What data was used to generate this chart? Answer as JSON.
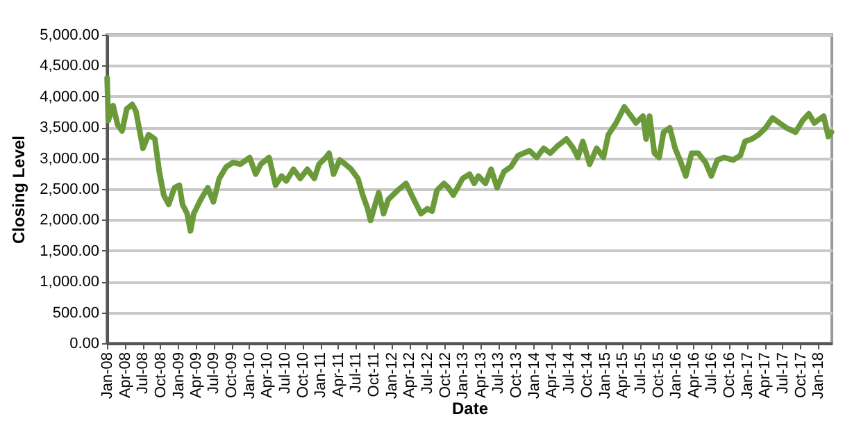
{
  "chart_data": {
    "type": "line",
    "xlabel": "Date",
    "ylabel": "Closing Level",
    "grid": "y",
    "xlim": [
      "2008-01-01",
      "2018-03-12"
    ],
    "xticks": [
      {
        "value": "2008-01-01",
        "label": "Jan-08"
      },
      {
        "value": "2008-04-01",
        "label": "Apr-08"
      },
      {
        "value": "2008-07-01",
        "label": "Jul-08"
      },
      {
        "value": "2008-10-01",
        "label": "Oct-08"
      },
      {
        "value": "2009-01-01",
        "label": "Jan-09"
      },
      {
        "value": "2009-04-01",
        "label": "Apr-09"
      },
      {
        "value": "2009-07-01",
        "label": "Jul-09"
      },
      {
        "value": "2009-10-01",
        "label": "Oct-09"
      },
      {
        "value": "2010-01-01",
        "label": "Jan-10"
      },
      {
        "value": "2010-04-01",
        "label": "Apr-10"
      },
      {
        "value": "2010-07-01",
        "label": "Jul-10"
      },
      {
        "value": "2010-10-01",
        "label": "Oct-10"
      },
      {
        "value": "2011-01-01",
        "label": "Jan-11"
      },
      {
        "value": "2011-04-01",
        "label": "Apr-11"
      },
      {
        "value": "2011-07-01",
        "label": "Jul-11"
      },
      {
        "value": "2011-10-01",
        "label": "Oct-11"
      },
      {
        "value": "2012-01-01",
        "label": "Jan-12"
      },
      {
        "value": "2012-04-01",
        "label": "Apr-12"
      },
      {
        "value": "2012-07-01",
        "label": "Jul-12"
      },
      {
        "value": "2012-10-01",
        "label": "Oct-12"
      },
      {
        "value": "2013-01-01",
        "label": "Jan-13"
      },
      {
        "value": "2013-04-01",
        "label": "Apr-13"
      },
      {
        "value": "2013-07-01",
        "label": "Jul-13"
      },
      {
        "value": "2013-10-01",
        "label": "Oct-13"
      },
      {
        "value": "2014-01-01",
        "label": "Jan-14"
      },
      {
        "value": "2014-04-01",
        "label": "Apr-14"
      },
      {
        "value": "2014-07-01",
        "label": "Jul-14"
      },
      {
        "value": "2014-10-01",
        "label": "Oct-14"
      },
      {
        "value": "2015-01-01",
        "label": "Jan-15"
      },
      {
        "value": "2015-04-01",
        "label": "Apr-15"
      },
      {
        "value": "2015-07-01",
        "label": "Jul-15"
      },
      {
        "value": "2015-10-01",
        "label": "Oct-15"
      },
      {
        "value": "2016-01-01",
        "label": "Jan-16"
      },
      {
        "value": "2016-04-01",
        "label": "Apr-16"
      },
      {
        "value": "2016-07-01",
        "label": "Jul-16"
      },
      {
        "value": "2016-10-01",
        "label": "Oct-16"
      },
      {
        "value": "2017-01-01",
        "label": "Jan-17"
      },
      {
        "value": "2017-04-01",
        "label": "Apr-17"
      },
      {
        "value": "2017-07-01",
        "label": "Jul-17"
      },
      {
        "value": "2017-10-01",
        "label": "Oct-17"
      },
      {
        "value": "2018-01-01",
        "label": "Jan-18"
      }
    ],
    "ylim": [
      0,
      5000
    ],
    "yticks": [
      {
        "value": 0,
        "label": "0.00"
      },
      {
        "value": 500,
        "label": "500.00"
      },
      {
        "value": 1000,
        "label": "1,000.00"
      },
      {
        "value": 1500,
        "label": "1,500.00"
      },
      {
        "value": 2000,
        "label": "2,000.00"
      },
      {
        "value": 2500,
        "label": "2,500.00"
      },
      {
        "value": 3000,
        "label": "3,000.00"
      },
      {
        "value": 3500,
        "label": "3,500.00"
      },
      {
        "value": 4000,
        "label": "4,000.00"
      },
      {
        "value": 4500,
        "label": "4,500.00"
      },
      {
        "value": 5000,
        "label": "5,000.00"
      }
    ],
    "series": [
      {
        "color": "#6a9a3a",
        "line_style": "solid",
        "marker": "none",
        "x": [
          "2008-01-02",
          "2008-01-08",
          "2008-02-02",
          "2008-02-25",
          "2008-03-19",
          "2008-04-12",
          "2008-05-10",
          "2008-05-29",
          "2008-07-04",
          "2008-08-02",
          "2008-09-03",
          "2008-09-26",
          "2008-10-19",
          "2008-11-13",
          "2008-12-13",
          "2009-01-07",
          "2009-01-23",
          "2009-02-16",
          "2009-03-05",
          "2009-03-22",
          "2009-04-27",
          "2009-06-02",
          "2009-07-01",
          "2009-07-31",
          "2009-09-05",
          "2009-10-10",
          "2009-11-16",
          "2010-01-03",
          "2010-02-03",
          "2010-03-01",
          "2010-04-13",
          "2010-05-16",
          "2010-06-16",
          "2010-07-10",
          "2010-08-16",
          "2010-09-20",
          "2010-10-26",
          "2010-12-01",
          "2010-12-25",
          "2011-01-30",
          "2011-02-15",
          "2011-03-10",
          "2011-04-10",
          "2011-05-10",
          "2011-06-08",
          "2011-07-13",
          "2011-08-07",
          "2011-09-01",
          "2011-09-16",
          "2011-10-10",
          "2011-10-28",
          "2011-11-22",
          "2011-12-16",
          "2012-02-03",
          "2012-03-16",
          "2012-04-25",
          "2012-06-01",
          "2012-07-04",
          "2012-07-28",
          "2012-08-22",
          "2012-09-27",
          "2012-10-20",
          "2012-11-14",
          "2013-01-01",
          "2013-02-06",
          "2013-03-01",
          "2013-03-23",
          "2013-04-28",
          "2013-05-27",
          "2013-06-27",
          "2013-08-01",
          "2013-09-06",
          "2013-10-12",
          "2013-12-10",
          "2014-01-16",
          "2014-02-21",
          "2014-03-27",
          "2014-05-01",
          "2014-06-18",
          "2014-07-23",
          "2014-08-16",
          "2014-09-10",
          "2014-10-15",
          "2014-11-20",
          "2014-12-25",
          "2015-01-19",
          "2015-02-28",
          "2015-04-11",
          "2015-05-16",
          "2015-06-10",
          "2015-07-16",
          "2015-08-01",
          "2015-08-19",
          "2015-09-13",
          "2015-10-07",
          "2015-10-30",
          "2015-12-01",
          "2015-12-28",
          "2016-01-27",
          "2016-02-21",
          "2016-03-22",
          "2016-04-25",
          "2016-06-01",
          "2016-07-01",
          "2016-08-01",
          "2016-09-04",
          "2016-10-21",
          "2016-11-27",
          "2016-12-21",
          "2017-01-25",
          "2017-03-01",
          "2017-04-06",
          "2017-05-11",
          "2017-06-16",
          "2017-07-22",
          "2017-09-07",
          "2017-10-13",
          "2017-11-14",
          "2017-12-12",
          "2018-01-29",
          "2018-02-22",
          "2018-03-10"
        ],
        "values": [
          4300,
          3610,
          3850,
          3540,
          3440,
          3800,
          3870,
          3760,
          3160,
          3380,
          3310,
          2780,
          2400,
          2250,
          2520,
          2560,
          2250,
          2100,
          1820,
          2100,
          2330,
          2520,
          2290,
          2670,
          2860,
          2930,
          2900,
          3010,
          2740,
          2900,
          3010,
          2560,
          2710,
          2630,
          2820,
          2670,
          2820,
          2670,
          2900,
          3010,
          3080,
          2740,
          2970,
          2900,
          2820,
          2670,
          2400,
          2180,
          1990,
          2250,
          2440,
          2100,
          2330,
          2480,
          2590,
          2330,
          2100,
          2180,
          2140,
          2480,
          2590,
          2520,
          2400,
          2670,
          2740,
          2590,
          2710,
          2590,
          2820,
          2520,
          2780,
          2860,
          3040,
          3120,
          3010,
          3160,
          3080,
          3190,
          3310,
          3160,
          3010,
          3270,
          2900,
          3160,
          3010,
          3380,
          3570,
          3830,
          3680,
          3570,
          3680,
          3310,
          3680,
          3080,
          3010,
          3420,
          3490,
          3160,
          2930,
          2710,
          3080,
          3080,
          2930,
          2710,
          2970,
          3010,
          2970,
          3040,
          3270,
          3310,
          3380,
          3490,
          3650,
          3570,
          3490,
          3420,
          3610,
          3720,
          3570,
          3680,
          3350,
          3420
        ]
      }
    ]
  }
}
